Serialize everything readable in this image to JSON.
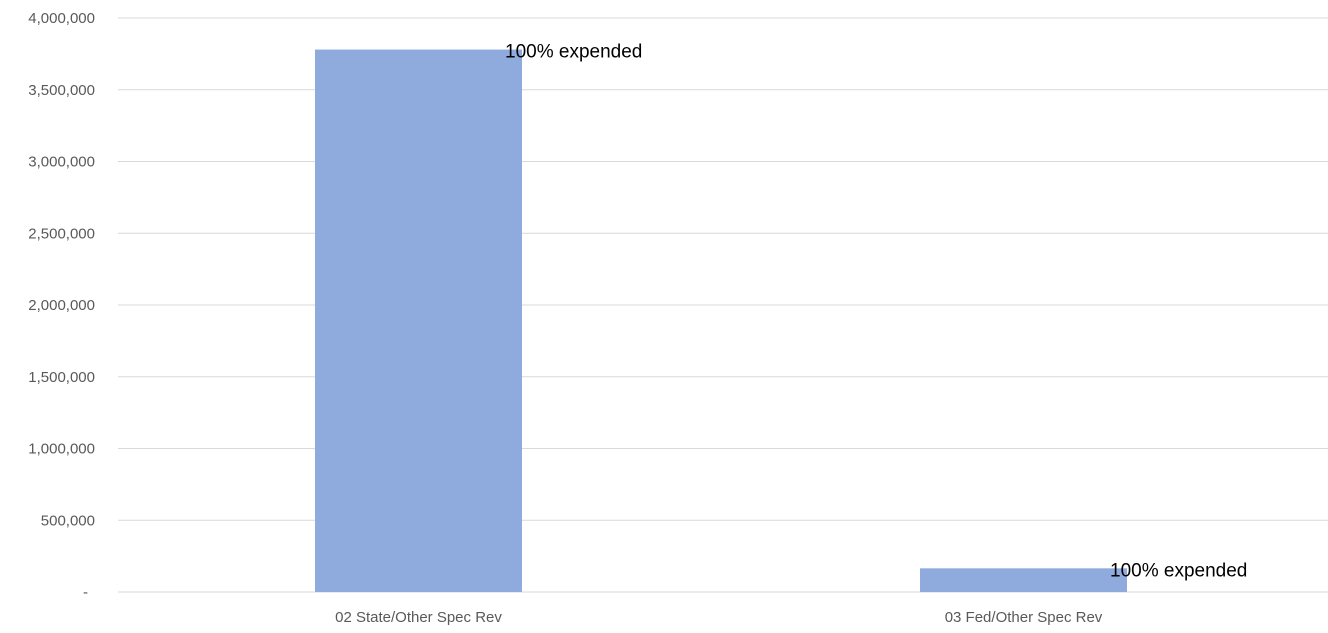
{
  "chart_data": {
    "type": "bar",
    "categories": [
      "02 State/Other Spec Rev",
      "03 Fed/Other Spec Rev"
    ],
    "values": [
      3780000,
      165000
    ],
    "data_labels": [
      "100% expended",
      "100% expended"
    ],
    "ylim": [
      0,
      4000000
    ],
    "y_ticks": [
      0,
      500000,
      1000000,
      1500000,
      2000000,
      2500000,
      3000000,
      3500000,
      4000000
    ],
    "y_tick_labels": [
      "-",
      "500,000",
      "1,000,000",
      "1,500,000",
      "2,000,000",
      "2,500,000",
      "3,000,000",
      "3,500,000",
      "4,000,000"
    ],
    "grid": true,
    "legend": "none",
    "title": "",
    "xlabel": "",
    "ylabel": "",
    "colors": {
      "bar": "#8faadc",
      "grid": "#d9d9d9",
      "tick_text": "#595959",
      "label_text": "#000000"
    }
  }
}
